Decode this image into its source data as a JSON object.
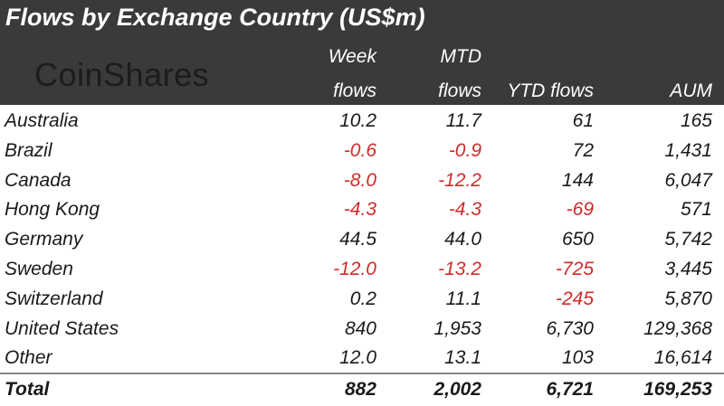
{
  "title": "Flows by Exchange Country (US$m)",
  "logo": "CoinShares",
  "columns": {
    "week": [
      "Week",
      "flows"
    ],
    "mtd": [
      "MTD",
      "flows"
    ],
    "ytd": "YTD flows",
    "aum": "AUM"
  },
  "rows": [
    {
      "country": "Australia",
      "week": "10.2",
      "mtd": "11.7",
      "ytd": "61",
      "aum": "165"
    },
    {
      "country": "Brazil",
      "week": "-0.6",
      "mtd": "-0.9",
      "ytd": "72",
      "aum": "1,431"
    },
    {
      "country": "Canada",
      "week": "-8.0",
      "mtd": "-12.2",
      "ytd": "144",
      "aum": "6,047"
    },
    {
      "country": "Hong Kong",
      "week": "-4.3",
      "mtd": "-4.3",
      "ytd": "-69",
      "aum": "571"
    },
    {
      "country": "Germany",
      "week": "44.5",
      "mtd": "44.0",
      "ytd": "650",
      "aum": "5,742"
    },
    {
      "country": "Sweden",
      "week": "-12.0",
      "mtd": "-13.2",
      "ytd": "-725",
      "aum": "3,445"
    },
    {
      "country": "Switzerland",
      "week": "0.2",
      "mtd": "11.1",
      "ytd": "-245",
      "aum": "5,870"
    },
    {
      "country": "United States",
      "week": "840",
      "mtd": "1,953",
      "ytd": "6,730",
      "aum": "129,368"
    },
    {
      "country": "Other",
      "week": "12.0",
      "mtd": "13.1",
      "ytd": "103",
      "aum": "16,614"
    }
  ],
  "total": {
    "label": "Total",
    "week": "882",
    "mtd": "2,002",
    "ytd": "6,721",
    "aum": "169,253"
  },
  "colors": {
    "header_bg": "#3a3a3a",
    "negative": "#d12a2a",
    "text": "#1a1a1a"
  }
}
